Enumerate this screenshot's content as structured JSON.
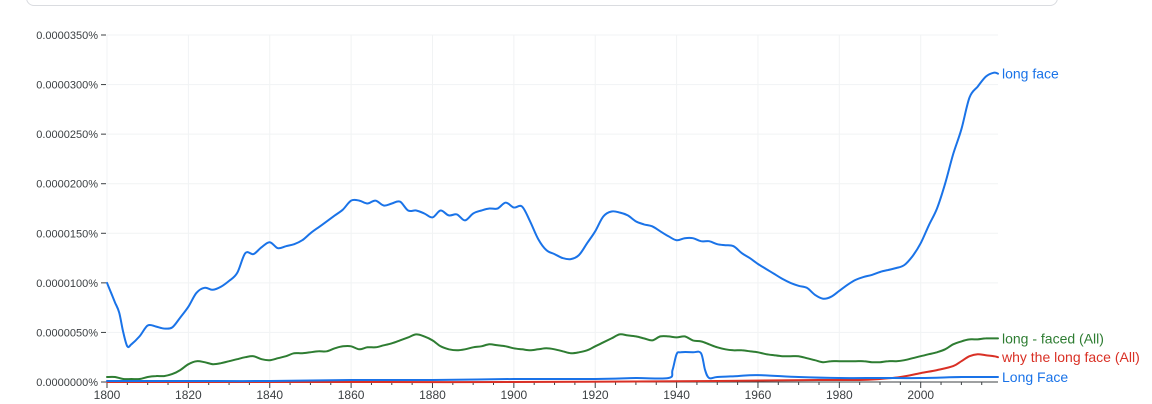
{
  "chart_data": {
    "type": "line",
    "title": "",
    "xlabel": "",
    "ylabel": "",
    "xlim": [
      1800,
      2019
    ],
    "ylim": [
      0,
      3.5e-05
    ],
    "grid": true,
    "legend": "right-end labels",
    "y_ticks": [
      {
        "value": 0.0,
        "label": "0.0000000%"
      },
      {
        "value": 5e-06,
        "label": "0.0000050%"
      },
      {
        "value": 1e-05,
        "label": "0.0000100%"
      },
      {
        "value": 1.5e-05,
        "label": "0.0000150%"
      },
      {
        "value": 2e-05,
        "label": "0.0000200%"
      },
      {
        "value": 2.5e-05,
        "label": "0.0000250%"
      },
      {
        "value": 3e-05,
        "label": "0.0000300%"
      },
      {
        "value": 3.5e-05,
        "label": "0.0000350%"
      }
    ],
    "x_ticks": [
      {
        "value": 1800,
        "label": "1800"
      },
      {
        "value": 1820,
        "label": "1820"
      },
      {
        "value": 1840,
        "label": "1840"
      },
      {
        "value": 1860,
        "label": "1860"
      },
      {
        "value": 1880,
        "label": "1880"
      },
      {
        "value": 1900,
        "label": "1900"
      },
      {
        "value": 1920,
        "label": "1920"
      },
      {
        "value": 1940,
        "label": "1940"
      },
      {
        "value": 1960,
        "label": "1960"
      },
      {
        "value": 1980,
        "label": "1980"
      },
      {
        "value": 2000,
        "label": "2000"
      }
    ],
    "series": [
      {
        "name": "long face",
        "color": "#1a73e8",
        "x": [
          1800,
          1801,
          1802,
          1803,
          1804,
          1805,
          1806,
          1808,
          1810,
          1812,
          1814,
          1816,
          1818,
          1820,
          1822,
          1824,
          1826,
          1828,
          1830,
          1832,
          1834,
          1836,
          1838,
          1840,
          1842,
          1844,
          1846,
          1848,
          1850,
          1852,
          1854,
          1856,
          1858,
          1860,
          1862,
          1864,
          1866,
          1868,
          1870,
          1872,
          1874,
          1876,
          1878,
          1880,
          1882,
          1884,
          1886,
          1888,
          1890,
          1892,
          1894,
          1896,
          1898,
          1900,
          1902,
          1904,
          1906,
          1908,
          1910,
          1912,
          1914,
          1916,
          1918,
          1920,
          1922,
          1924,
          1926,
          1928,
          1930,
          1932,
          1934,
          1936,
          1938,
          1940,
          1942,
          1944,
          1946,
          1948,
          1950,
          1952,
          1954,
          1956,
          1958,
          1960,
          1962,
          1964,
          1966,
          1968,
          1970,
          1972,
          1974,
          1976,
          1978,
          1980,
          1982,
          1984,
          1986,
          1988,
          1990,
          1992,
          1994,
          1996,
          1998,
          2000,
          2002,
          2004,
          2006,
          2008,
          2010,
          2012,
          2014,
          2016,
          2018,
          2019
        ],
        "values": [
          1e-05,
          9e-06,
          8e-06,
          7e-06,
          5e-06,
          3.6e-06,
          3.8e-06,
          4.6e-06,
          5.7e-06,
          5.6e-06,
          5.4e-06,
          5.5e-06,
          6.5e-06,
          7.6e-06,
          9e-06,
          9.5e-06,
          9.3e-06,
          9.6e-06,
          1.02e-05,
          1.1e-05,
          1.3e-05,
          1.29e-05,
          1.36e-05,
          1.41e-05,
          1.35e-05,
          1.37e-05,
          1.39e-05,
          1.43e-05,
          1.5e-05,
          1.56e-05,
          1.62e-05,
          1.68e-05,
          1.74e-05,
          1.83e-05,
          1.83e-05,
          1.8e-05,
          1.83e-05,
          1.78e-05,
          1.8e-05,
          1.82e-05,
          1.73e-05,
          1.73e-05,
          1.7e-05,
          1.66e-05,
          1.73e-05,
          1.68e-05,
          1.69e-05,
          1.63e-05,
          1.7e-05,
          1.73e-05,
          1.75e-05,
          1.75e-05,
          1.81e-05,
          1.76e-05,
          1.77e-05,
          1.62e-05,
          1.44e-05,
          1.33e-05,
          1.29e-05,
          1.25e-05,
          1.24e-05,
          1.28e-05,
          1.4e-05,
          1.52e-05,
          1.67e-05,
          1.72e-05,
          1.71e-05,
          1.68e-05,
          1.62e-05,
          1.59e-05,
          1.57e-05,
          1.52e-05,
          1.47e-05,
          1.43e-05,
          1.45e-05,
          1.45e-05,
          1.42e-05,
          1.42e-05,
          1.39e-05,
          1.38e-05,
          1.37e-05,
          1.3e-05,
          1.25e-05,
          1.19e-05,
          1.14e-05,
          1.09e-05,
          1.04e-05,
          1e-05,
          9.7e-06,
          9.5e-06,
          8.8e-06,
          8.4e-06,
          8.6e-06,
          9.2e-06,
          9.8e-06,
          1.03e-05,
          1.06e-05,
          1.08e-05,
          1.11e-05,
          1.13e-05,
          1.15e-05,
          1.18e-05,
          1.27e-05,
          1.4e-05,
          1.58e-05,
          1.75e-05,
          2e-05,
          2.3e-05,
          2.55e-05,
          2.87e-05,
          2.98e-05,
          3.08e-05,
          3.12e-05,
          3.11e-05
        ]
      },
      {
        "name": "long - faced (All)",
        "color": "#2e7d32",
        "x": [
          1800,
          1802,
          1804,
          1806,
          1808,
          1810,
          1812,
          1814,
          1816,
          1818,
          1820,
          1822,
          1824,
          1826,
          1828,
          1830,
          1832,
          1834,
          1836,
          1838,
          1840,
          1842,
          1844,
          1846,
          1848,
          1850,
          1852,
          1854,
          1856,
          1858,
          1860,
          1862,
          1864,
          1866,
          1868,
          1870,
          1872,
          1874,
          1876,
          1878,
          1880,
          1882,
          1884,
          1886,
          1888,
          1890,
          1892,
          1894,
          1896,
          1898,
          1900,
          1902,
          1904,
          1906,
          1908,
          1910,
          1912,
          1914,
          1916,
          1918,
          1920,
          1922,
          1924,
          1926,
          1928,
          1930,
          1932,
          1934,
          1936,
          1938,
          1940,
          1942,
          1944,
          1946,
          1948,
          1950,
          1952,
          1954,
          1956,
          1958,
          1960,
          1962,
          1964,
          1966,
          1968,
          1970,
          1972,
          1974,
          1976,
          1978,
          1980,
          1982,
          1984,
          1986,
          1988,
          1990,
          1992,
          1994,
          1996,
          1998,
          2000,
          2002,
          2004,
          2006,
          2008,
          2010,
          2012,
          2014,
          2016,
          2018,
          2019
        ],
        "values": [
          5e-07,
          5e-07,
          3e-07,
          3e-07,
          3e-07,
          5e-07,
          6e-07,
          6e-07,
          8e-07,
          1.2e-06,
          1.8e-06,
          2.1e-06,
          2e-06,
          1.8e-06,
          1.9e-06,
          2.1e-06,
          2.3e-06,
          2.5e-06,
          2.6e-06,
          2.3e-06,
          2.2e-06,
          2.4e-06,
          2.6e-06,
          2.9e-06,
          2.9e-06,
          3e-06,
          3.1e-06,
          3.1e-06,
          3.4e-06,
          3.6e-06,
          3.6e-06,
          3.3e-06,
          3.5e-06,
          3.5e-06,
          3.7e-06,
          3.9e-06,
          4.2e-06,
          4.5e-06,
          4.8e-06,
          4.6e-06,
          4.2e-06,
          3.6e-06,
          3.3e-06,
          3.2e-06,
          3.3e-06,
          3.5e-06,
          3.6e-06,
          3.8e-06,
          3.7e-06,
          3.6e-06,
          3.4e-06,
          3.3e-06,
          3.2e-06,
          3.3e-06,
          3.4e-06,
          3.3e-06,
          3.1e-06,
          2.9e-06,
          3e-06,
          3.2e-06,
          3.6e-06,
          4e-06,
          4.4e-06,
          4.8e-06,
          4.7e-06,
          4.6e-06,
          4.4e-06,
          4.2e-06,
          4.6e-06,
          4.6e-06,
          4.5e-06,
          4.6e-06,
          4.2e-06,
          4.1e-06,
          3.8e-06,
          3.5e-06,
          3.3e-06,
          3.2e-06,
          3.2e-06,
          3.1e-06,
          3e-06,
          2.8e-06,
          2.7e-06,
          2.6e-06,
          2.6e-06,
          2.6e-06,
          2.4e-06,
          2.2e-06,
          2e-06,
          2.1e-06,
          2.1e-06,
          2.1e-06,
          2.1e-06,
          2.1e-06,
          2e-06,
          2e-06,
          2.1e-06,
          2.1e-06,
          2.2e-06,
          2.4e-06,
          2.6e-06,
          2.8e-06,
          3e-06,
          3.3e-06,
          3.8e-06,
          4.1e-06,
          4.3e-06,
          4.3e-06,
          4.4e-06,
          4.4e-06,
          4.4e-06
        ]
      },
      {
        "name": "why the long face (All)",
        "color": "#d93025",
        "x": [
          1800,
          1850,
          1900,
          1950,
          1975,
          1985,
          1990,
          1995,
          2000,
          2004,
          2008,
          2010,
          2012,
          2014,
          2016,
          2018,
          2019
        ],
        "values": [
          0.0,
          0.0,
          0.0,
          1e-07,
          2e-07,
          2e-07,
          3e-07,
          5e-07,
          9e-07,
          1.2e-06,
          1.6e-06,
          2.1e-06,
          2.6e-06,
          2.8e-06,
          2.7e-06,
          2.6e-06,
          2.5e-06
        ]
      },
      {
        "name": "Long Face",
        "color": "#1a73e8",
        "x": [
          1800,
          1820,
          1840,
          1860,
          1880,
          1900,
          1920,
          1930,
          1938,
          1939,
          1940,
          1941,
          1944,
          1946,
          1947,
          1948,
          1950,
          1955,
          1960,
          1970,
          1980,
          1990,
          2000,
          2010,
          2019
        ],
        "values": [
          1e-07,
          1e-07,
          1e-07,
          2e-07,
          2e-07,
          3e-07,
          3e-07,
          4e-07,
          4e-07,
          1.2e-06,
          2.8e-06,
          3e-06,
          3e-06,
          2.9e-06,
          1.2e-06,
          4e-07,
          5e-07,
          6e-07,
          7e-07,
          5e-07,
          4e-07,
          4e-07,
          4e-07,
          5e-07,
          5e-07
        ]
      }
    ]
  }
}
